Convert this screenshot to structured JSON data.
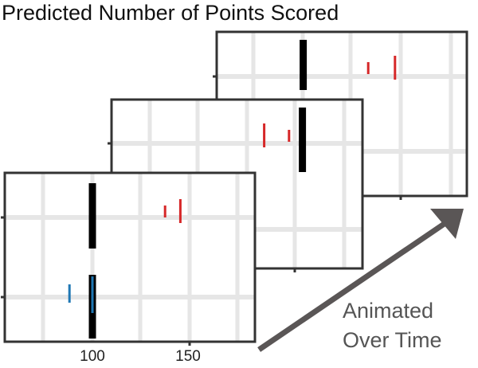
{
  "title": "Predicted Number of Points Scored",
  "annotation": {
    "line1": "Animated",
    "line2": "Over Time"
  },
  "colors": {
    "frame": "#333333",
    "grid": "#e6e6e6",
    "actual": "#000000",
    "team_red": "#d62728",
    "team_blue": "#1f77b4",
    "arrow": "#5a5656"
  },
  "chart_data": {
    "type": "scatter",
    "x_ticks": [
      100,
      150
    ],
    "frames": [
      {
        "layer": "back",
        "rows": [
          {
            "marks": [
              {
                "kind": "actual",
                "x": 99
              },
              {
                "kind": "predicted",
                "color": "red",
                "x": 147
              },
              {
                "kind": "predicted",
                "color": "red",
                "x": 133
              }
            ]
          }
        ]
      },
      {
        "layer": "middle",
        "rows": [
          {
            "marks": [
              {
                "kind": "actual",
                "x": 154
              },
              {
                "kind": "predicted",
                "color": "red",
                "x": 134
              },
              {
                "kind": "predicted",
                "color": "red",
                "x": 147
              }
            ]
          }
        ]
      },
      {
        "layer": "front",
        "rows": [
          {
            "marks": [
              {
                "kind": "actual",
                "x": 100
              },
              {
                "kind": "predicted",
                "color": "red",
                "x": 146
              },
              {
                "kind": "predicted",
                "color": "red",
                "x": 138
              }
            ]
          },
          {
            "marks": [
              {
                "kind": "actual",
                "x": 100
              },
              {
                "kind": "predicted",
                "color": "blue",
                "x": 100
              },
              {
                "kind": "predicted",
                "color": "blue",
                "x": 88
              }
            ]
          }
        ]
      }
    ]
  }
}
